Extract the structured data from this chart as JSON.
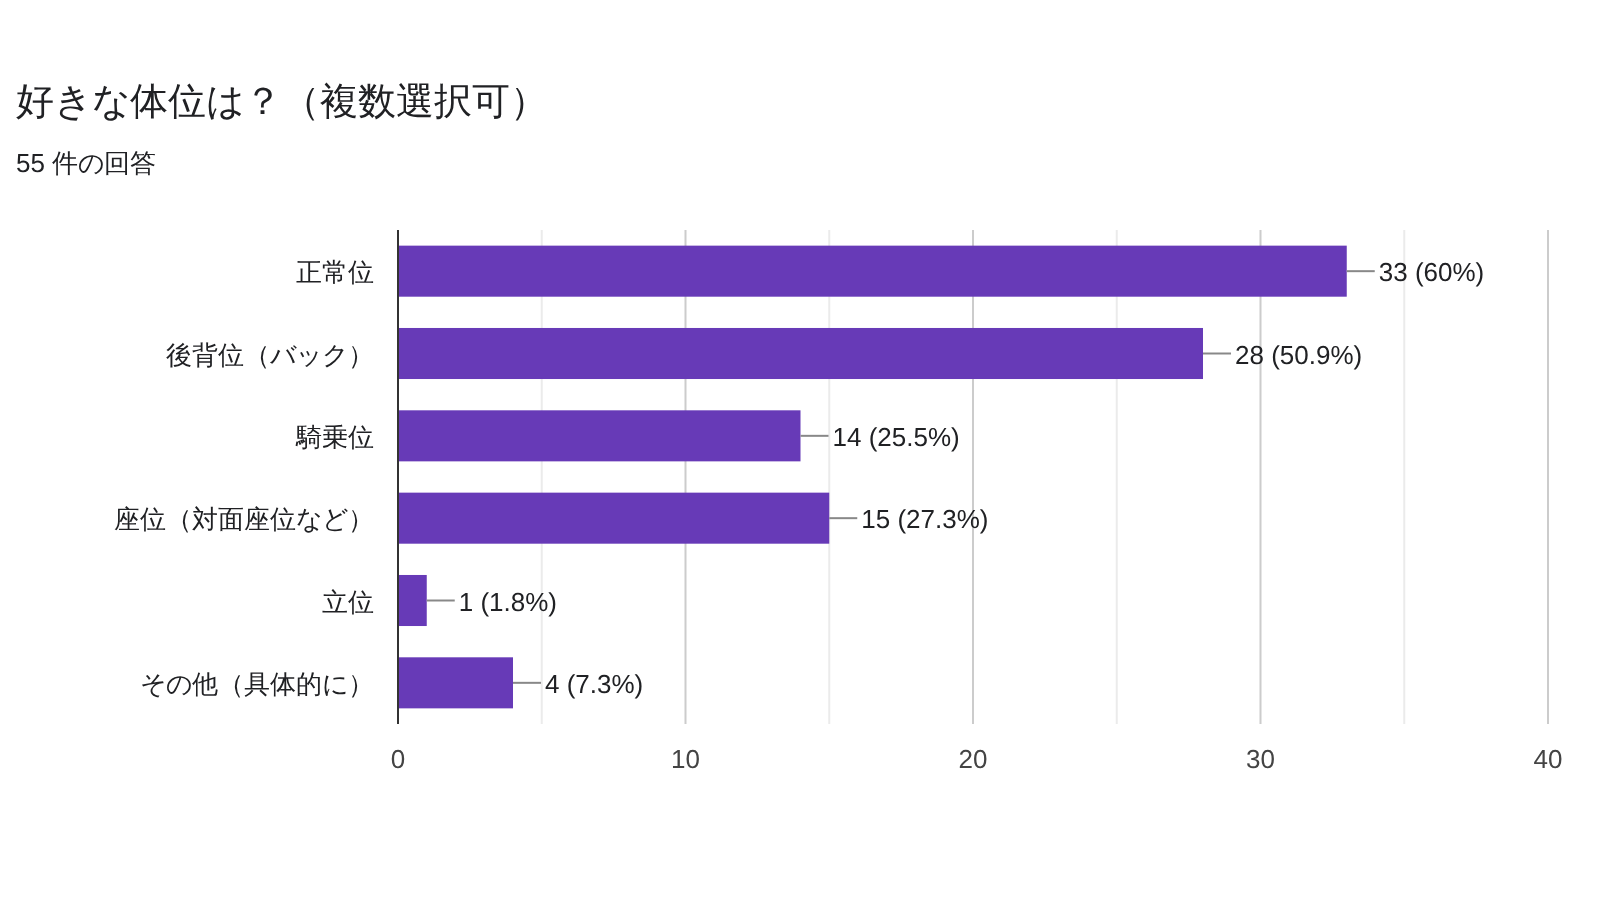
{
  "chart_data": {
    "type": "bar",
    "orientation": "horizontal",
    "title": "好きな体位は？（複数選択可）",
    "subtitle": "55 件の回答",
    "categories": [
      "正常位",
      "後背位（バック）",
      "騎乗位",
      "座位（対面座位など）",
      "立位",
      "その他（具体的に）"
    ],
    "values": [
      33,
      28,
      14,
      15,
      1,
      4
    ],
    "value_labels": [
      "33 (60%)",
      "28 (50.9%)",
      "14 (25.5%)",
      "15 (27.3%)",
      "1 (1.8%)",
      "4 (7.3%)"
    ],
    "color": "#673ab7",
    "xlim": [
      0,
      40
    ],
    "xticks": [
      0,
      {
        "value": 5,
        "label": null
      },
      10,
      {
        "value": 15,
        "label": null
      },
      20,
      {
        "value": 25,
        "label": null
      },
      30,
      {
        "value": 35,
        "label": null
      },
      40
    ],
    "grid": "x"
  }
}
